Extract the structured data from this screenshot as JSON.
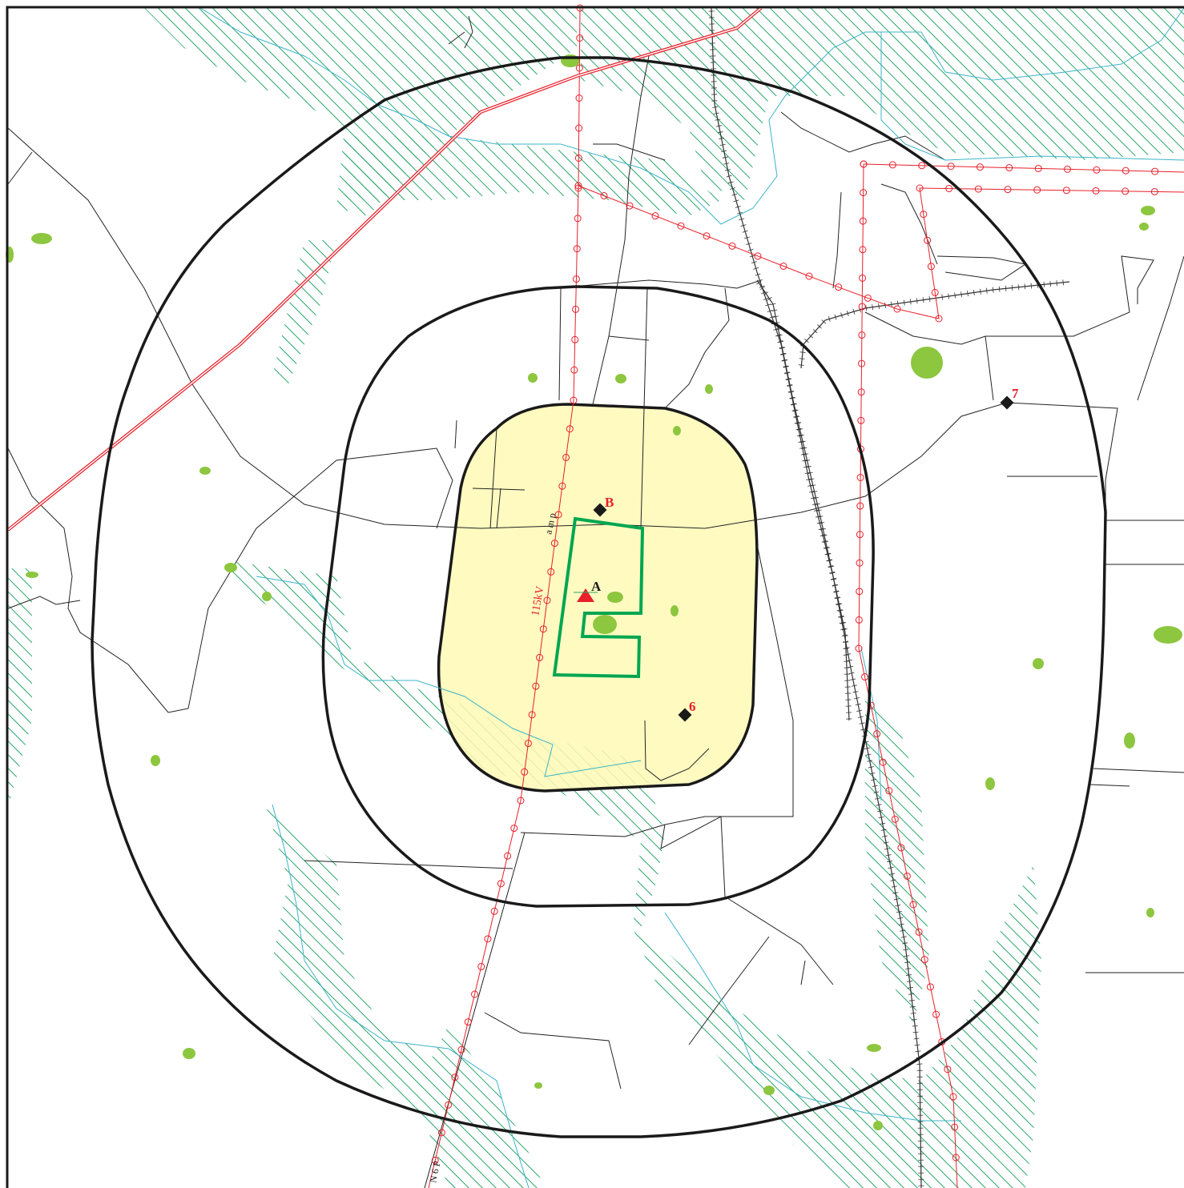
{
  "points": [
    {
      "label": "A"
    },
    {
      "label": "B"
    },
    {
      "label": "6"
    },
    {
      "label": "7"
    }
  ],
  "line_labels": [
    "115kV",
    "a m p",
    "N 6 P"
  ]
}
